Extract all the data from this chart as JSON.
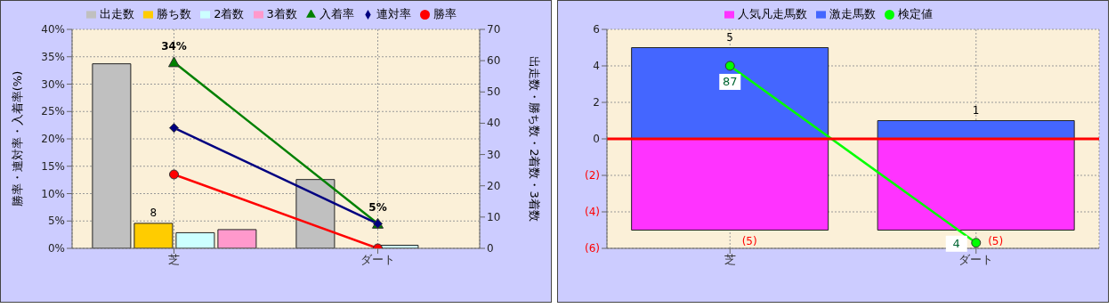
{
  "chart_data": [
    {
      "type": "bar",
      "categories": [
        "芝",
        "ダート"
      ],
      "ylabel": "勝率・連対率・入着率(%)",
      "y2label": "出走数・勝ち数・2着数・3着数",
      "ylim": [
        0,
        40
      ],
      "yticks": [
        {
          "value": 0,
          "label": "0%"
        },
        {
          "value": 5,
          "label": "5%"
        },
        {
          "value": 10,
          "label": "10%"
        },
        {
          "value": 15,
          "label": "15%"
        },
        {
          "value": 20,
          "label": "20%"
        },
        {
          "value": 25,
          "label": "25%"
        },
        {
          "value": 30,
          "label": "30%"
        },
        {
          "value": 35,
          "label": "35%"
        },
        {
          "value": 40,
          "label": "40%"
        }
      ],
      "y2lim": [
        0,
        70
      ],
      "y2ticks": [
        0,
        10,
        20,
        30,
        40,
        50,
        60,
        70
      ],
      "grid": true,
      "legend": "top",
      "series": [
        {
          "name": "出走数",
          "axis": "y2",
          "color": "#c0c0c0",
          "values": [
            59,
            22
          ]
        },
        {
          "name": "勝ち数",
          "axis": "y2",
          "color": "#ffcc00",
          "values": [
            8,
            0
          ],
          "value_labels": [
            "8",
            null
          ]
        },
        {
          "name": "2着数",
          "axis": "y2",
          "color": "#ccffff",
          "values": [
            5,
            1
          ]
        },
        {
          "name": "3着数",
          "axis": "y2",
          "color": "#ff99cc",
          "values": [
            6,
            0
          ]
        },
        {
          "name": "入着率",
          "type": "line",
          "axis": "y",
          "color": "#008000",
          "marker": "triangle",
          "values": [
            34,
            4.5
          ],
          "value_labels": [
            "34%",
            "5%"
          ]
        },
        {
          "name": "連対率",
          "type": "line",
          "axis": "y",
          "color": "#000080",
          "marker": "diamond",
          "values": [
            22,
            4.5
          ]
        },
        {
          "name": "勝率",
          "type": "line",
          "axis": "y",
          "color": "#ff0000",
          "marker": "circle",
          "values": [
            13.5,
            0
          ]
        }
      ]
    },
    {
      "type": "bar",
      "stacked": true,
      "categories": [
        "芝",
        "ダート"
      ],
      "ylim": [
        -6,
        6
      ],
      "yticks": [
        {
          "value": -6,
          "label": "(6)"
        },
        {
          "value": -4,
          "label": "(4)"
        },
        {
          "value": -2,
          "label": "(2)"
        },
        0,
        2,
        4,
        6
      ],
      "y2lim": [
        1.4,
        104.1
      ],
      "tick_labels": "xy",
      "grid": true,
      "legend": "top",
      "ref_lines": [
        {
          "axis": "y",
          "value": 0,
          "color": "#ff0000"
        }
      ],
      "series": [
        {
          "name": "人気凡走馬数",
          "axis": "y",
          "color": "#ff33ff",
          "values": [
            -5,
            -5
          ],
          "value_labels": [
            "(5)",
            "(5)"
          ]
        },
        {
          "name": "激走馬数",
          "axis": "y",
          "color": "#4466ff",
          "values": [
            5,
            1
          ],
          "value_labels": [
            "5",
            "1"
          ]
        },
        {
          "name": "検定値",
          "type": "line",
          "axis": "y2",
          "color": "#00ff00",
          "marker": "circle",
          "values": [
            87,
            4
          ],
          "value_labels": [
            "87",
            "4"
          ]
        }
      ]
    }
  ]
}
